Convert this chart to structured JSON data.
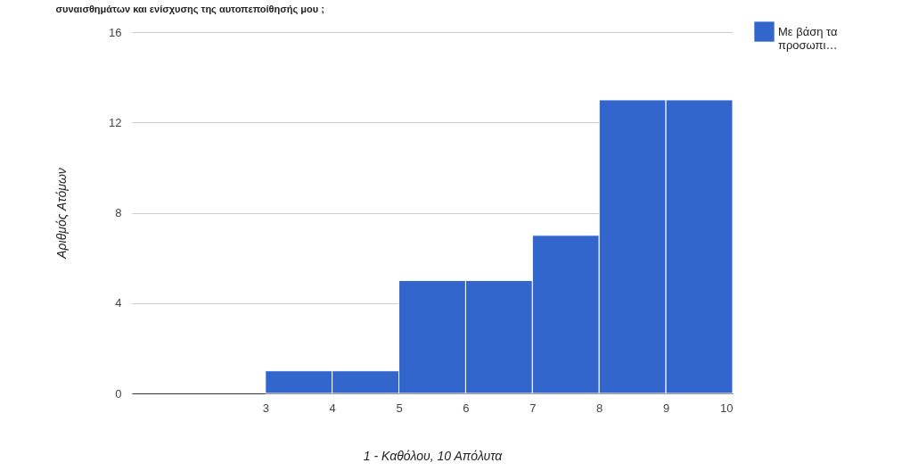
{
  "chart_data": {
    "type": "histogram",
    "title": "συναισθημάτων και ενίσχυσης της αυτοπεποίθησής μου ;",
    "xlabel": "1 - Καθόλου, 10 Απόλυτα",
    "ylabel": "Αριθμός Ατόμων",
    "bins": [
      1,
      2,
      3,
      4,
      5,
      6,
      7,
      8,
      9,
      10
    ],
    "series": [
      {
        "name": "Με βάση τα προσωπι…",
        "color": "#3366cc",
        "values": [
          0,
          0,
          1,
          1,
          5,
          5,
          7,
          13,
          13
        ]
      }
    ],
    "xlim": [
      1,
      10
    ],
    "xticks": [
      3,
      4,
      5,
      6,
      7,
      8,
      9,
      10
    ],
    "ylim": [
      0,
      16
    ],
    "yticks": [
      0,
      4,
      8,
      12,
      16
    ],
    "grid": "y",
    "legend": "top right"
  }
}
